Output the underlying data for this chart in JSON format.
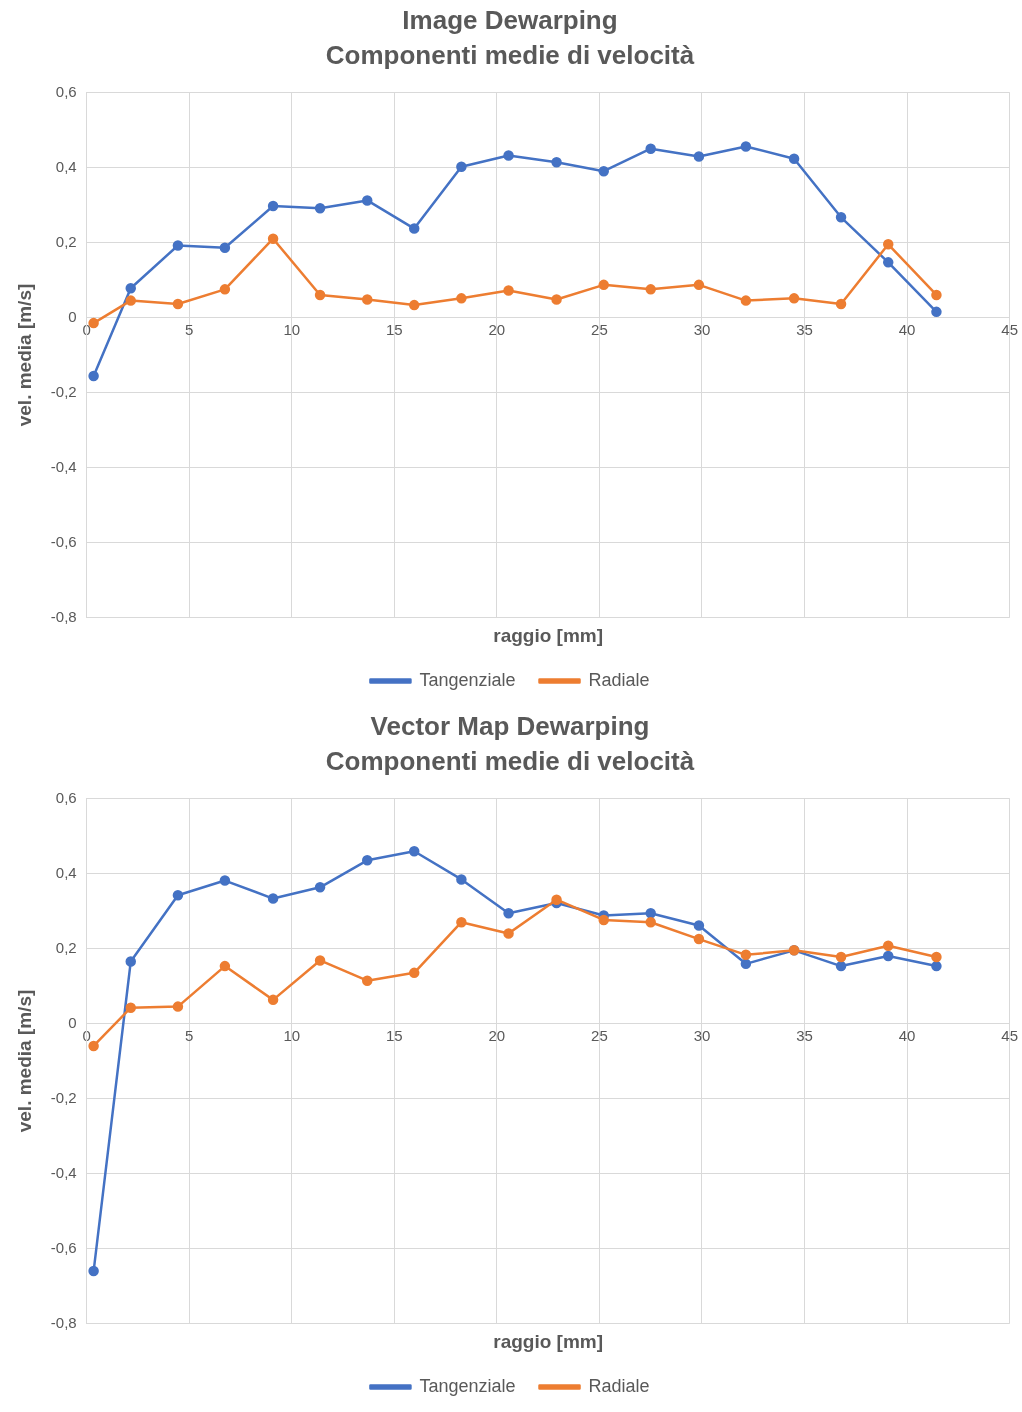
{
  "chart_data": [
    {
      "type": "line",
      "title": "Image Dewarping",
      "subtitle": "Componenti medie di velocità",
      "xlabel": "raggio [mm]",
      "ylabel": "vel. media [m/s]",
      "x": [
        0.34,
        2.15,
        4.45,
        6.74,
        9.09,
        11.38,
        13.68,
        15.97,
        18.27,
        20.57,
        22.91,
        25.21,
        27.5,
        29.85,
        32.14,
        34.49,
        36.78,
        39.08,
        41.43
      ],
      "series": [
        {
          "name": "Tangenziale",
          "color": "#4472c4",
          "values": [
            -0.156,
            0.078,
            0.192,
            0.186,
            0.297,
            0.291,
            0.312,
            0.237,
            0.402,
            0.432,
            0.414,
            0.39,
            0.45,
            0.429,
            0.456,
            0.423,
            0.267,
            0.147,
            0.015
          ]
        },
        {
          "name": "Radiale",
          "color": "#ed7d31",
          "values": [
            -0.015,
            0.045,
            0.036,
            0.075,
            0.21,
            0.06,
            0.048,
            0.033,
            0.051,
            0.072,
            0.048,
            0.087,
            0.075,
            0.087,
            0.045,
            0.051,
            0.036,
            0.195,
            0.06
          ]
        }
      ],
      "xlim": [
        0,
        45
      ],
      "xticks": [
        0,
        5,
        10,
        15,
        20,
        25,
        30,
        35,
        40,
        45
      ],
      "ylim": [
        -0.8,
        0.6
      ],
      "yticks": [
        {
          "value": -0.8,
          "label": "-0,8"
        },
        {
          "value": -0.6,
          "label": "-0,6"
        },
        {
          "value": -0.4,
          "label": "-0,4"
        },
        {
          "value": -0.2,
          "label": "-0,2"
        },
        {
          "value": 0,
          "label": "0"
        },
        {
          "value": 0.2,
          "label": "0,2"
        },
        {
          "value": 0.4,
          "label": "0,4"
        },
        {
          "value": 0.6,
          "label": "0,6"
        }
      ],
      "grid": true,
      "legend": "bottom",
      "marker": "circle",
      "line_style": "solid"
    },
    {
      "type": "line",
      "title": "Vector Map Dewarping",
      "subtitle": "Componenti medie di velocità",
      "xlabel": "raggio [mm]",
      "ylabel": "vel. media [m/s]",
      "x": [
        0.34,
        2.15,
        4.45,
        6.74,
        9.09,
        11.38,
        13.68,
        15.97,
        18.27,
        20.57,
        22.91,
        25.21,
        27.5,
        29.85,
        32.14,
        34.49,
        36.78,
        39.08,
        41.43
      ],
      "series": [
        {
          "name": "Tangenziale",
          "color": "#4472c4",
          "values": [
            -0.66,
            0.165,
            0.342,
            0.381,
            0.333,
            0.363,
            0.435,
            0.459,
            0.384,
            0.294,
            0.321,
            0.288,
            0.294,
            0.261,
            0.159,
            0.195,
            0.153,
            0.18,
            0.153
          ]
        },
        {
          "name": "Radiale",
          "color": "#ed7d31",
          "values": [
            -0.06,
            0.042,
            0.045,
            0.153,
            0.063,
            0.168,
            0.114,
            0.135,
            0.27,
            0.24,
            0.33,
            0.276,
            0.27,
            0.225,
            0.183,
            0.195,
            0.177,
            0.207,
            0.177
          ]
        }
      ],
      "xlim": [
        0,
        45
      ],
      "xticks": [
        0,
        5,
        10,
        15,
        20,
        25,
        30,
        35,
        40,
        45
      ],
      "ylim": [
        -0.8,
        0.6
      ],
      "yticks": [
        {
          "value": -0.8,
          "label": "-0,8"
        },
        {
          "value": -0.6,
          "label": "-0,6"
        },
        {
          "value": -0.4,
          "label": "-0,4"
        },
        {
          "value": -0.2,
          "label": "-0,2"
        },
        {
          "value": 0,
          "label": "0"
        },
        {
          "value": 0.2,
          "label": "0,2"
        },
        {
          "value": 0.4,
          "label": "0,4"
        },
        {
          "value": 0.6,
          "label": "0,6"
        }
      ],
      "grid": true,
      "legend": "bottom",
      "marker": "circle",
      "line_style": "solid"
    }
  ]
}
